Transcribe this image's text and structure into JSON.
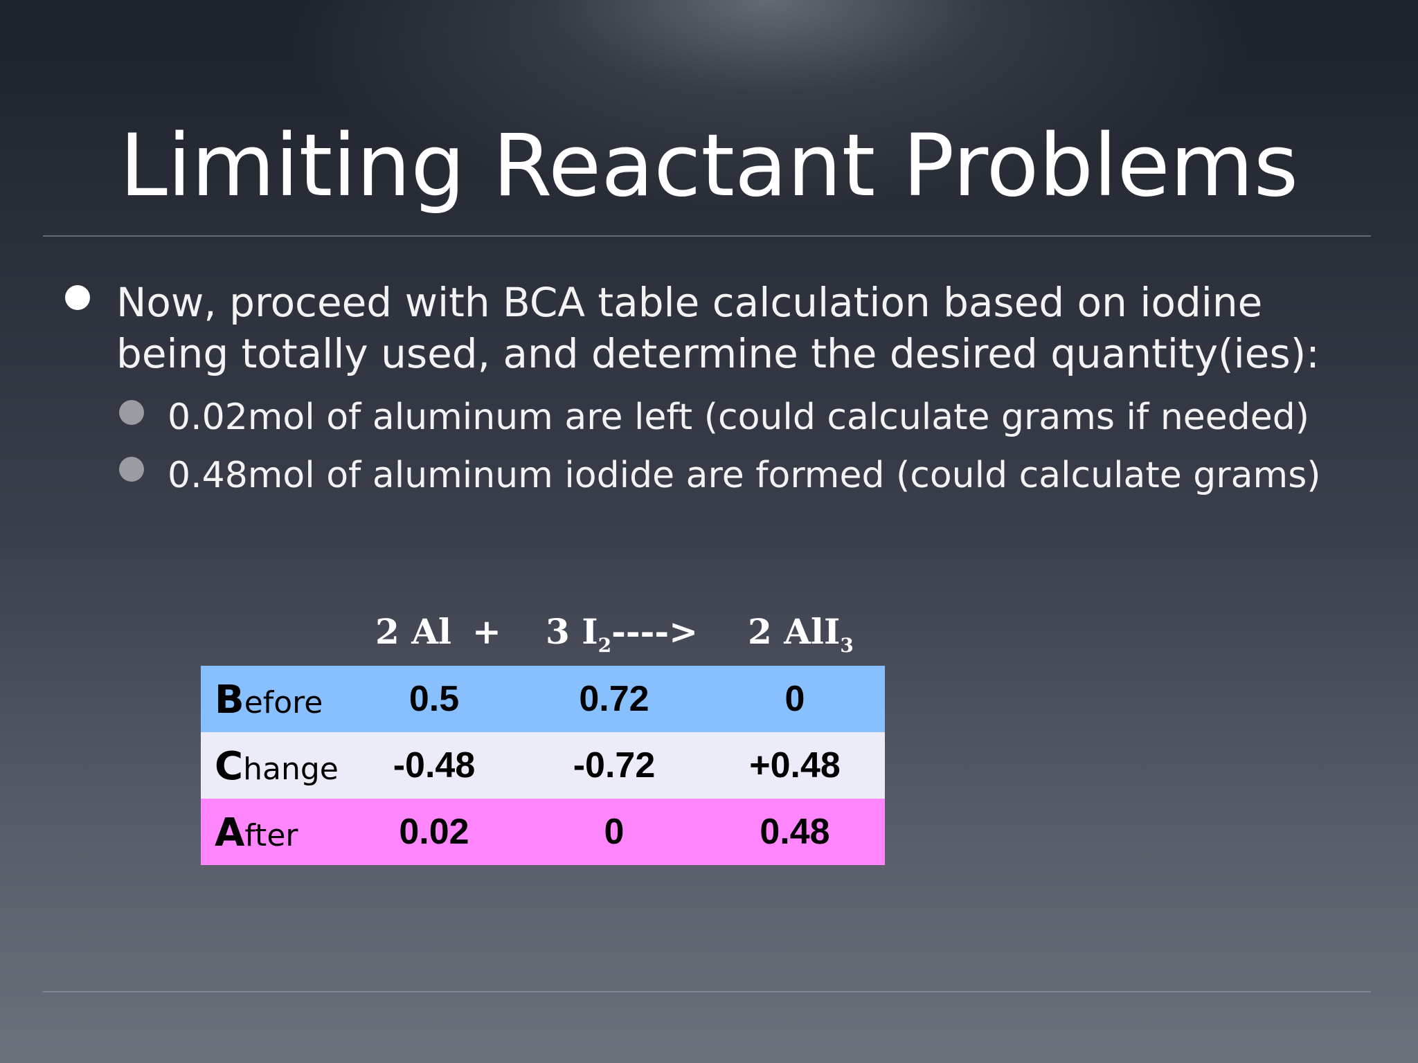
{
  "slide": {
    "title": "Limiting Reactant Problems",
    "bullet_main": "Now, proceed with BCA table calculation based on iodine being totally used, and determine the desired quantity(ies):",
    "sub_bullets": [
      "0.02mol of aluminum are left (could calculate grams if needed)",
      "0.48mol of aluminum iodide are formed (could calculate grams)"
    ]
  },
  "equation": {
    "reactant1": "2 Al",
    "plus": "+",
    "reactant2_coef": "3 I",
    "reactant2_sub": "2",
    "arrow": "---->",
    "product_coef": "2 AlI",
    "product_sub": "3"
  },
  "bca_table": {
    "rows": [
      {
        "cap": "B",
        "rest": "efore",
        "values": [
          "0.5",
          "0.72",
          "0"
        ]
      },
      {
        "cap": "C",
        "rest": "hange",
        "values": [
          "-0.48",
          "-0.72",
          "+0.48"
        ]
      },
      {
        "cap": "A",
        "rest": "fter",
        "values": [
          "0.02",
          "0",
          "0.48"
        ]
      }
    ]
  },
  "colors": {
    "before_row": "#88c0ff",
    "change_row": "#ececf8",
    "after_row": "#ff86fc"
  }
}
